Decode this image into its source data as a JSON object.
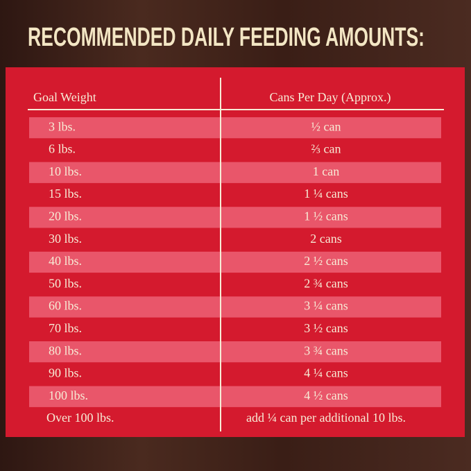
{
  "header": {
    "title": "RECOMMENDED DAILY FEEDING AMOUNTS:"
  },
  "table": {
    "columns": [
      "Goal Weight",
      "Cans Per Day (Approx.)"
    ],
    "rows": [
      [
        "3 lbs.",
        "½ can"
      ],
      [
        "6 lbs.",
        "⅔ can"
      ],
      [
        "10 lbs.",
        "1 can"
      ],
      [
        "15 lbs.",
        "1 ¼ cans"
      ],
      [
        "20 lbs.",
        "1 ½ cans"
      ],
      [
        "30 lbs.",
        "2 cans"
      ],
      [
        "40 lbs.",
        "2 ½ cans"
      ],
      [
        "50 lbs.",
        "2 ¾ cans"
      ],
      [
        "60 lbs.",
        "3 ¼ cans"
      ],
      [
        "70 lbs.",
        "3 ½ cans"
      ],
      [
        "80 lbs.",
        "3 ¾ cans"
      ],
      [
        "90 lbs.",
        "4 ¼ cans"
      ],
      [
        "100 lbs.",
        "4 ½ cans"
      ],
      [
        "Over 100 lbs.",
        "add ¼ can per additional 10 lbs."
      ]
    ]
  }
}
